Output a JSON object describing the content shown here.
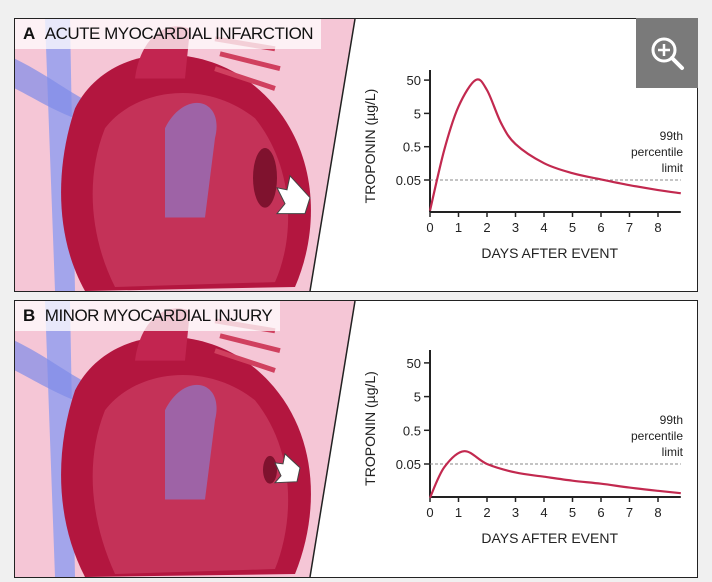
{
  "zoom_button": {
    "icon": "zoom-in-icon"
  },
  "panels": [
    {
      "letter": "A",
      "title": "ACUTE MYOCARDIAL INFARCTION"
    },
    {
      "letter": "B",
      "title": "MINOR MYOCARDIAL INJURY"
    }
  ],
  "colors": {
    "curve": "#c2294f",
    "pink": "#f5c6d6",
    "heart": "#b3163f",
    "vessel": "#6b78e0"
  },
  "chart_data": [
    {
      "type": "line",
      "title": "ACUTE MYOCARDIAL INFARCTION",
      "xlabel": "DAYS AFTER EVENT",
      "ylabel": "TROPONIN (µg/L)",
      "yscale": "log",
      "x_ticks": [
        "0",
        "1",
        "2",
        "3",
        "4",
        "5",
        "6",
        "7",
        "8"
      ],
      "y_ticks": [
        "50",
        "5",
        "0.5",
        "0.05"
      ],
      "xlim": [
        0,
        8.8
      ],
      "reference_line": {
        "value": 0.05,
        "label": [
          "99th",
          "percentile",
          "limit"
        ]
      },
      "x": [
        0,
        0.5,
        1,
        1.6,
        2,
        2.5,
        3,
        4,
        5,
        6,
        7,
        8,
        8.8
      ],
      "y": [
        0.006,
        0.4,
        8,
        50,
        25,
        2.5,
        0.6,
        0.16,
        0.08,
        0.052,
        0.035,
        0.025,
        0.02
      ]
    },
    {
      "type": "line",
      "title": "MINOR MYOCARDIAL INJURY",
      "xlabel": "DAYS AFTER EVENT",
      "ylabel": "TROPONIN (µg/L)",
      "yscale": "log",
      "x_ticks": [
        "0",
        "1",
        "2",
        "3",
        "4",
        "5",
        "6",
        "7",
        "8"
      ],
      "y_ticks": [
        "50",
        "5",
        "0.5",
        "0.05"
      ],
      "xlim": [
        0,
        8.8
      ],
      "reference_line": {
        "value": 0.05,
        "label": [
          "99th",
          "percentile",
          "limit"
        ]
      },
      "x": [
        0,
        0.5,
        1.2,
        2,
        3,
        4,
        5,
        6,
        7,
        8,
        8.8
      ],
      "y": [
        0.005,
        0.04,
        0.12,
        0.05,
        0.028,
        0.021,
        0.016,
        0.013,
        0.01,
        0.008,
        0.0068
      ]
    }
  ]
}
